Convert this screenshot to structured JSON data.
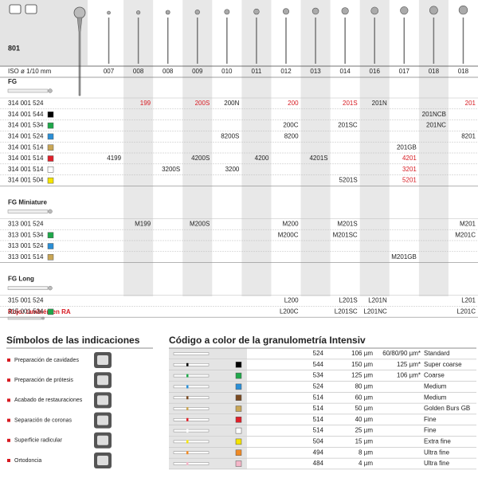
{
  "header": {
    "code": "801",
    "iso_label": "ISO ø 1/10 mm",
    "sizes": [
      "007",
      "008",
      "008",
      "009",
      "010",
      "011",
      "012",
      "013",
      "014",
      "016",
      "017",
      "018",
      "018"
    ]
  },
  "sections": [
    {
      "title": "FG",
      "rows": [
        {
          "ref": "314 001 524",
          "swatch": null,
          "cells": [
            null,
            {
              "text": "199",
              "color": "#d71920"
            },
            null,
            {
              "text": "200S",
              "color": "#d71920"
            },
            {
              "text": "200N",
              "color": "#222222"
            },
            null,
            {
              "text": "200",
              "color": "#d71920"
            },
            null,
            {
              "text": "201S",
              "color": "#d71920"
            },
            {
              "text": "201N",
              "color": "#222222"
            },
            null,
            null,
            {
              "text": "201",
              "color": "#d71920"
            }
          ]
        },
        {
          "ref": "314 001 544",
          "swatch": "#000000",
          "cells": [
            null,
            null,
            null,
            null,
            null,
            null,
            null,
            null,
            null,
            null,
            null,
            {
              "text": "201NCB",
              "color": "#222222"
            },
            null
          ]
        },
        {
          "ref": "314 001 534",
          "swatch": "#1fa84a",
          "cells": [
            null,
            null,
            null,
            null,
            null,
            null,
            {
              "text": "200C",
              "color": "#222222"
            },
            null,
            {
              "text": "201SC",
              "color": "#222222"
            },
            null,
            null,
            {
              "text": "201NC",
              "color": "#222222"
            },
            null
          ]
        },
        {
          "ref": "314 001 524",
          "swatch": "#2b8fd6",
          "cells": [
            null,
            null,
            null,
            null,
            {
              "text": "8200S",
              "color": "#222222"
            },
            null,
            {
              "text": "8200",
              "color": "#222222"
            },
            null,
            null,
            null,
            null,
            null,
            {
              "text": "8201",
              "color": "#222222"
            }
          ]
        },
        {
          "ref": "314 001 514",
          "swatch": "#c9a656",
          "cells": [
            null,
            null,
            null,
            null,
            null,
            null,
            null,
            null,
            null,
            null,
            {
              "text": "201GB",
              "color": "#222222"
            },
            null,
            null
          ]
        },
        {
          "ref": "314 001 514",
          "swatch": "#e0202a",
          "cells": [
            {
              "text": "4199",
              "color": "#222222"
            },
            null,
            null,
            {
              "text": "4200S",
              "color": "#222222"
            },
            null,
            {
              "text": "4200",
              "color": "#222222"
            },
            null,
            {
              "text": "4201S",
              "color": "#222222"
            },
            null,
            null,
            {
              "text": "4201",
              "color": "#d71920"
            },
            null,
            null
          ]
        },
        {
          "ref": "314 001 514",
          "swatch": "#ffffff",
          "cells": [
            null,
            null,
            {
              "text": "3200S",
              "color": "#222222"
            },
            null,
            {
              "text": "3200",
              "color": "#222222"
            },
            null,
            null,
            null,
            null,
            null,
            {
              "text": "3201",
              "color": "#d71920"
            },
            null,
            null
          ]
        },
        {
          "ref": "314 001 504",
          "swatch": "#f5e400",
          "cells": [
            null,
            null,
            null,
            null,
            null,
            null,
            null,
            null,
            {
              "text": "5201S",
              "color": "#222222"
            },
            null,
            {
              "text": "5201",
              "color": "#d71920"
            },
            null,
            null
          ]
        }
      ]
    },
    {
      "title": "FG Miniature",
      "rows": [
        {
          "ref": "313 001 524",
          "swatch": null,
          "cells": [
            null,
            {
              "text": "M199",
              "color": "#222222"
            },
            null,
            {
              "text": "M200S",
              "color": "#222222"
            },
            null,
            null,
            {
              "text": "M200",
              "color": "#222222"
            },
            null,
            {
              "text": "M201S",
              "color": "#222222"
            },
            null,
            null,
            null,
            {
              "text": "M201",
              "color": "#222222"
            }
          ]
        },
        {
          "ref": "313 001 534",
          "swatch": "#1fa84a",
          "cells": [
            null,
            null,
            null,
            null,
            null,
            null,
            {
              "text": "M200C",
              "color": "#222222"
            },
            null,
            {
              "text": "M201SC",
              "color": "#222222"
            },
            null,
            null,
            null,
            {
              "text": "M201C",
              "color": "#222222"
            }
          ]
        },
        {
          "ref": "313 001 524",
          "swatch": "#2b8fd6",
          "cells": [
            null,
            null,
            null,
            null,
            null,
            null,
            null,
            null,
            null,
            null,
            null,
            null,
            null
          ]
        },
        {
          "ref": "313 001 514",
          "swatch": "#c9a656",
          "cells": [
            null,
            null,
            null,
            null,
            null,
            null,
            null,
            null,
            null,
            null,
            {
              "text": "M201GB",
              "color": "#222222"
            },
            null,
            null
          ]
        }
      ]
    },
    {
      "title": "FG Long",
      "rows": [
        {
          "ref": "315 001 524",
          "swatch": null,
          "cells": [
            null,
            null,
            null,
            null,
            null,
            null,
            {
              "text": "L200",
              "color": "#222222"
            },
            null,
            {
              "text": "L201S",
              "color": "#222222"
            },
            {
              "text": "L201N",
              "color": "#222222"
            },
            null,
            null,
            {
              "text": "L201",
              "color": "#222222"
            }
          ]
        },
        {
          "ref": "315 001 534",
          "swatch": "#1fa84a",
          "cells": [
            null,
            null,
            null,
            null,
            null,
            null,
            {
              "text": "L200C",
              "color": "#222222"
            },
            null,
            {
              "text": "L201SC",
              "color": "#222222"
            },
            {
              "text": "L201NC",
              "color": "#222222"
            },
            null,
            null,
            {
              "text": "L201C",
              "color": "#222222"
            }
          ]
        }
      ]
    }
  ],
  "note": "Rojo: también en RA",
  "indications": {
    "title": "Símbolos de las indicaciones",
    "items": [
      "Preparación de cavidades",
      "Preparación de prótesis",
      "Acabado de restauraciones",
      "Separación de coronas",
      "Superficie radicular",
      "Ortodoncia"
    ]
  },
  "grit_code": {
    "title": "Código a color de la granulometría Intensiv",
    "rows": [
      {
        "code": "524",
        "grit": "106 µm",
        "note": "60/80/90 µm*",
        "grade": "Standard",
        "color": null
      },
      {
        "code": "544",
        "grit": "150 µm",
        "note": "125 µm*",
        "grade": "Super coarse",
        "color": "#000000"
      },
      {
        "code": "534",
        "grit": "125 µm",
        "note": "106 µm*",
        "grade": "Coarse",
        "color": "#1fa84a"
      },
      {
        "code": "524",
        "grit": "80 µm",
        "note": null,
        "grade": "Medium",
        "color": "#2b8fd6"
      },
      {
        "code": "514",
        "grit": "60 µm",
        "note": null,
        "grade": "Medium",
        "color": "#7a4a22"
      },
      {
        "code": "514",
        "grit": "50 µm",
        "note": null,
        "grade": "Golden Burs GB",
        "color": "#c9a656"
      },
      {
        "code": "514",
        "grit": "40 µm",
        "note": null,
        "grade": "Fine",
        "color": "#e0202a"
      },
      {
        "code": "514",
        "grit": "25 µm",
        "note": null,
        "grade": "Fine",
        "color": "#ffffff"
      },
      {
        "code": "504",
        "grit": "15 µm",
        "note": null,
        "grade": "Extra fine",
        "color": "#f5e400"
      },
      {
        "code": "494",
        "grit": "8 µm",
        "note": null,
        "grade": "Ultra fine",
        "color": "#f08a24"
      },
      {
        "code": "484",
        "grit": "4 µm",
        "note": null,
        "grade": "Ultra fine",
        "color": "#f4b6c8"
      }
    ]
  }
}
